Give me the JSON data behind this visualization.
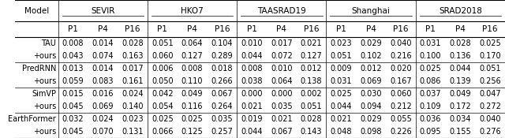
{
  "col_groups": [
    "SEVIR",
    "HKO7",
    "TAASRAD19",
    "Shanghai",
    "SRAD2018"
  ],
  "sub_cols": [
    "P1",
    "P4",
    "P16"
  ],
  "model_col": "Model",
  "rows": [
    {
      "model": "TAU",
      "values": [
        [
          0.008,
          0.014,
          0.028
        ],
        [
          0.051,
          0.064,
          0.104
        ],
        [
          0.01,
          0.017,
          0.021
        ],
        [
          0.023,
          0.029,
          0.04
        ],
        [
          0.031,
          0.028,
          0.025
        ]
      ]
    },
    {
      "model": "+ours",
      "values": [
        [
          0.043,
          0.074,
          0.163
        ],
        [
          0.06,
          0.127,
          0.289
        ],
        [
          0.044,
          0.072,
          0.127
        ],
        [
          0.051,
          0.102,
          0.216
        ],
        [
          0.1,
          0.136,
          0.17
        ]
      ]
    },
    {
      "model": "PredRNN",
      "values": [
        [
          0.013,
          0.014,
          0.017
        ],
        [
          0.006,
          0.008,
          0.018
        ],
        [
          0.008,
          0.01,
          0.012
        ],
        [
          0.009,
          0.012,
          0.02
        ],
        [
          0.025,
          0.044,
          0.051
        ]
      ]
    },
    {
      "model": "+ours",
      "values": [
        [
          0.059,
          0.083,
          0.161
        ],
        [
          0.05,
          0.11,
          0.266
        ],
        [
          0.038,
          0.064,
          0.138
        ],
        [
          0.031,
          0.069,
          0.167
        ],
        [
          0.086,
          0.139,
          0.256
        ]
      ]
    },
    {
      "model": "SimVP",
      "values": [
        [
          0.015,
          0.016,
          0.024
        ],
        [
          0.042,
          0.049,
          0.067
        ],
        [
          0.0,
          0.0,
          0.002
        ],
        [
          0.025,
          0.03,
          0.06
        ],
        [
          0.037,
          0.049,
          0.047
        ]
      ]
    },
    {
      "model": "+ours",
      "values": [
        [
          0.045,
          0.069,
          0.14
        ],
        [
          0.054,
          0.116,
          0.264
        ],
        [
          0.021,
          0.035,
          0.051
        ],
        [
          0.044,
          0.094,
          0.212
        ],
        [
          0.109,
          0.172,
          0.272
        ]
      ]
    },
    {
      "model": "EarthFormer",
      "values": [
        [
          0.032,
          0.024,
          0.023
        ],
        [
          0.025,
          0.025,
          0.035
        ],
        [
          0.019,
          0.021,
          0.028
        ],
        [
          0.021,
          0.029,
          0.055
        ],
        [
          0.036,
          0.034,
          0.04
        ]
      ]
    },
    {
      "model": "+ours",
      "values": [
        [
          0.045,
          0.07,
          0.131
        ],
        [
          0.066,
          0.125,
          0.257
        ],
        [
          0.044,
          0.067,
          0.143
        ],
        [
          0.048,
          0.098,
          0.226
        ],
        [
          0.095,
          0.155,
          0.276
        ]
      ]
    }
  ],
  "background_color": "#ffffff",
  "header_fontsize": 7.5,
  "cell_fontsize": 7.0,
  "figsize": [
    6.4,
    1.75
  ],
  "dpi": 100
}
